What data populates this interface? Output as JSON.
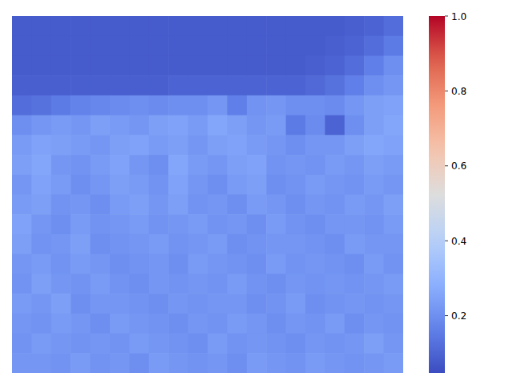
{
  "chart_data": {
    "type": "heatmap",
    "tick_labels": false,
    "cells": [
      [
        0.08,
        0.08,
        0.08,
        0.08,
        0.08,
        0.08,
        0.08,
        0.08,
        0.08,
        0.08,
        0.08,
        0.08,
        0.08,
        0.08,
        0.08,
        0.08,
        0.08,
        0.09,
        0.1,
        0.12
      ],
      [
        0.08,
        0.08,
        0.08,
        0.08,
        0.08,
        0.08,
        0.08,
        0.08,
        0.08,
        0.08,
        0.08,
        0.08,
        0.08,
        0.08,
        0.08,
        0.08,
        0.09,
        0.1,
        0.12,
        0.15
      ],
      [
        0.08,
        0.08,
        0.08,
        0.08,
        0.08,
        0.08,
        0.08,
        0.08,
        0.08,
        0.08,
        0.08,
        0.08,
        0.08,
        0.08,
        0.08,
        0.09,
        0.1,
        0.12,
        0.16,
        0.2
      ],
      [
        0.09,
        0.09,
        0.09,
        0.09,
        0.09,
        0.09,
        0.09,
        0.09,
        0.1,
        0.1,
        0.1,
        0.1,
        0.1,
        0.1,
        0.1,
        0.11,
        0.13,
        0.16,
        0.2,
        0.22
      ],
      [
        0.12,
        0.13,
        0.15,
        0.17,
        0.18,
        0.19,
        0.2,
        0.19,
        0.2,
        0.2,
        0.22,
        0.16,
        0.21,
        0.22,
        0.2,
        0.2,
        0.19,
        0.22,
        0.24,
        0.25
      ],
      [
        0.2,
        0.22,
        0.23,
        0.22,
        0.24,
        0.23,
        0.22,
        0.24,
        0.25,
        0.23,
        0.26,
        0.24,
        0.22,
        0.23,
        0.15,
        0.19,
        0.1,
        0.2,
        0.24,
        0.26
      ],
      [
        0.23,
        0.25,
        0.24,
        0.23,
        0.22,
        0.24,
        0.25,
        0.23,
        0.24,
        0.22,
        0.24,
        0.25,
        0.23,
        0.22,
        0.2,
        0.22,
        0.22,
        0.24,
        0.26,
        0.25
      ],
      [
        0.24,
        0.26,
        0.22,
        0.21,
        0.23,
        0.25,
        0.22,
        0.2,
        0.26,
        0.23,
        0.22,
        0.24,
        0.25,
        0.21,
        0.22,
        0.21,
        0.23,
        0.22,
        0.24,
        0.23
      ],
      [
        0.22,
        0.25,
        0.23,
        0.2,
        0.22,
        0.24,
        0.23,
        0.21,
        0.25,
        0.22,
        0.2,
        0.23,
        0.24,
        0.2,
        0.21,
        0.23,
        0.22,
        0.21,
        0.23,
        0.22
      ],
      [
        0.23,
        0.24,
        0.21,
        0.22,
        0.2,
        0.23,
        0.24,
        0.22,
        0.24,
        0.21,
        0.22,
        0.2,
        0.23,
        0.22,
        0.2,
        0.22,
        0.21,
        0.23,
        0.22,
        0.24
      ],
      [
        0.25,
        0.22,
        0.2,
        0.23,
        0.21,
        0.22,
        0.23,
        0.21,
        0.22,
        0.23,
        0.21,
        0.22,
        0.2,
        0.23,
        0.21,
        0.2,
        0.22,
        0.22,
        0.21,
        0.23
      ],
      [
        0.24,
        0.21,
        0.22,
        0.24,
        0.2,
        0.21,
        0.22,
        0.23,
        0.21,
        0.22,
        0.23,
        0.2,
        0.21,
        0.22,
        0.22,
        0.21,
        0.2,
        0.23,
        0.22,
        0.22
      ],
      [
        0.22,
        0.23,
        0.21,
        0.23,
        0.22,
        0.2,
        0.21,
        0.22,
        0.2,
        0.23,
        0.22,
        0.21,
        0.2,
        0.23,
        0.21,
        0.22,
        0.21,
        0.2,
        0.23,
        0.21
      ],
      [
        0.21,
        0.24,
        0.22,
        0.21,
        0.23,
        0.21,
        0.2,
        0.22,
        0.21,
        0.22,
        0.21,
        0.23,
        0.21,
        0.2,
        0.22,
        0.21,
        0.22,
        0.21,
        0.22,
        0.23
      ],
      [
        0.23,
        0.22,
        0.24,
        0.2,
        0.22,
        0.22,
        0.21,
        0.2,
        0.22,
        0.21,
        0.22,
        0.22,
        0.2,
        0.21,
        0.23,
        0.2,
        0.21,
        0.22,
        0.21,
        0.22
      ],
      [
        0.22,
        0.21,
        0.23,
        0.22,
        0.2,
        0.23,
        0.22,
        0.21,
        0.2,
        0.22,
        0.21,
        0.23,
        0.22,
        0.2,
        0.22,
        0.21,
        0.23,
        0.2,
        0.22,
        0.21
      ],
      [
        0.21,
        0.23,
        0.22,
        0.21,
        0.22,
        0.21,
        0.23,
        0.22,
        0.21,
        0.2,
        0.23,
        0.21,
        0.22,
        0.21,
        0.2,
        0.22,
        0.21,
        0.22,
        0.24,
        0.22
      ],
      [
        0.22,
        0.22,
        0.21,
        0.23,
        0.21,
        0.22,
        0.2,
        0.23,
        0.22,
        0.21,
        0.22,
        0.2,
        0.23,
        0.22,
        0.21,
        0.23,
        0.22,
        0.21,
        0.22,
        0.23
      ]
    ],
    "colorbar": {
      "range": [
        0.047,
        1.0
      ],
      "ticks": [
        0.2,
        0.4,
        0.6,
        0.8,
        {
          "value": 1.0,
          "label": "1.0"
        }
      ]
    }
  }
}
